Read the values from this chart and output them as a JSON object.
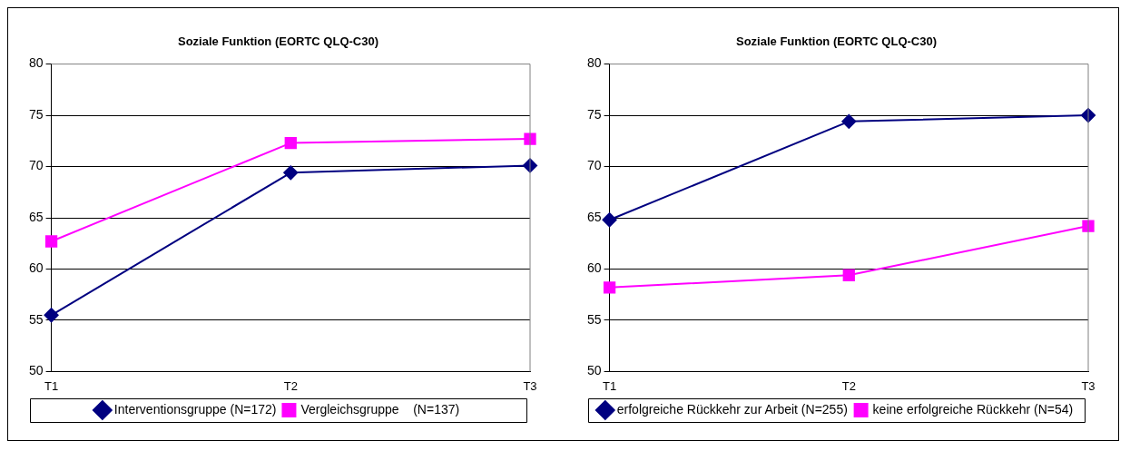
{
  "chart_data": [
    {
      "type": "line",
      "title": "Soziale Funktion (EORTC QLQ-C30)",
      "categories": [
        "T1",
        "T2",
        "T3"
      ],
      "series": [
        {
          "name": "Interventionsgruppe (N=172)",
          "color": "#000080",
          "values": [
            55.5,
            69.4,
            70.1
          ],
          "marker": "diamond"
        },
        {
          "name": "Vergleichsgruppe    (N=137)",
          "color": "#ff00ff",
          "values": [
            62.7,
            72.3,
            72.7
          ],
          "marker": "square"
        }
      ],
      "ylim": [
        50,
        80
      ],
      "yticks": [
        50,
        55,
        60,
        65,
        70,
        75,
        80
      ],
      "grid": "y",
      "legend": "bottom"
    },
    {
      "type": "line",
      "title": "Soziale Funktion (EORTC QLQ-C30)",
      "categories": [
        "T1",
        "T2",
        "T3"
      ],
      "series": [
        {
          "name": "erfolgreiche Rückkehr zur Arbeit (N=255)",
          "color": "#000080",
          "values": [
            64.8,
            74.4,
            75.0
          ],
          "marker": "diamond"
        },
        {
          "name": "keine erfolgreiche Rückkehr (N=54)",
          "color": "#ff00ff",
          "values": [
            58.2,
            59.4,
            64.2
          ],
          "marker": "square"
        }
      ],
      "ylim": [
        50,
        80
      ],
      "yticks": [
        50,
        55,
        60,
        65,
        70,
        75,
        80
      ],
      "grid": "y",
      "legend": "bottom"
    }
  ]
}
